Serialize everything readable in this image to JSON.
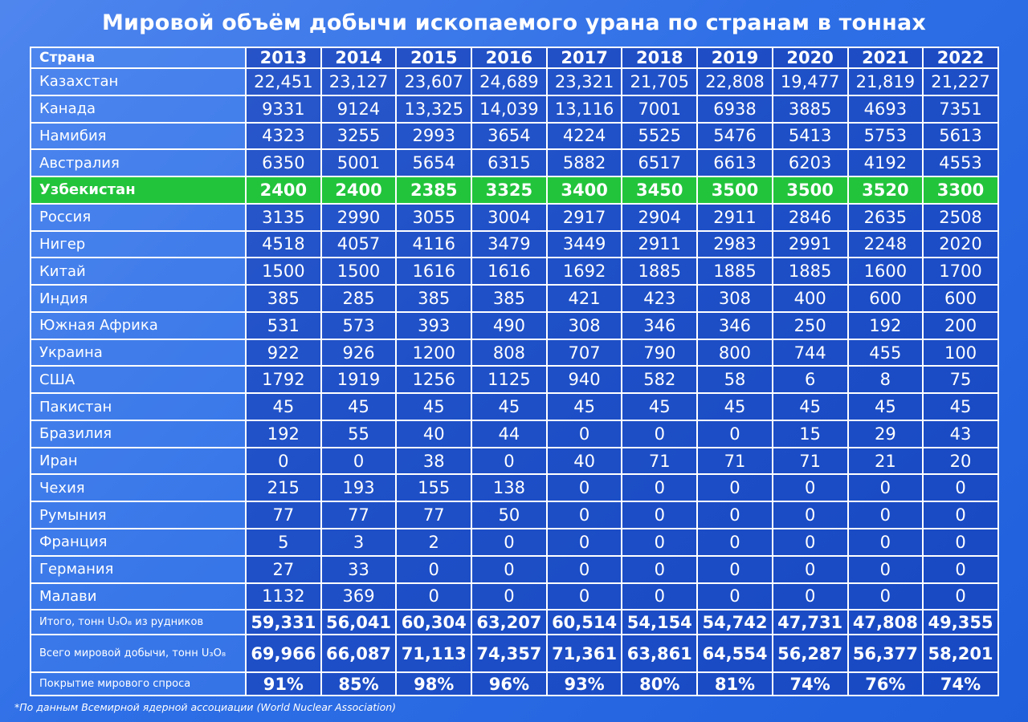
{
  "title": "Мировой объём добычи ископаемого урана по странам в тоннах",
  "footnote": "*По данным Всемирной ядерной ассоциации (World Nuclear Association)",
  "colors": {
    "background": "#2f6fe6",
    "highlight": "#22c43c",
    "grid": "#ffffff"
  },
  "chart_data": {
    "type": "table",
    "column_header": "Страна",
    "years": [
      "2013",
      "2014",
      "2015",
      "2016",
      "2017",
      "2018",
      "2019",
      "2020",
      "2021",
      "2022"
    ],
    "rows": [
      {
        "country": "Казахстан",
        "values": [
          "22,451",
          "23,127",
          "23,607",
          "24,689",
          "23,321",
          "21,705",
          "22,808",
          "19,477",
          "21,819",
          "21,227"
        ]
      },
      {
        "country": "Канада",
        "values": [
          "9331",
          "9124",
          "13,325",
          "14,039",
          "13,116",
          "7001",
          "6938",
          "3885",
          "4693",
          "7351"
        ]
      },
      {
        "country": "Намибия",
        "values": [
          "4323",
          "3255",
          "2993",
          "3654",
          "4224",
          "5525",
          "5476",
          "5413",
          "5753",
          "5613"
        ]
      },
      {
        "country": "Австралия",
        "values": [
          "6350",
          "5001",
          "5654",
          "6315",
          "5882",
          "6517",
          "6613",
          "6203",
          "4192",
          "4553"
        ]
      },
      {
        "country": "Узбекистан",
        "highlight": true,
        "values": [
          "2400",
          "2400",
          "2385",
          "3325",
          "3400",
          "3450",
          "3500",
          "3500",
          "3520",
          "3300"
        ]
      },
      {
        "country": "Россия",
        "values": [
          "3135",
          "2990",
          "3055",
          "3004",
          "2917",
          "2904",
          "2911",
          "2846",
          "2635",
          "2508"
        ]
      },
      {
        "country": "Нигер",
        "values": [
          "4518",
          "4057",
          "4116",
          "3479",
          "3449",
          "2911",
          "2983",
          "2991",
          "2248",
          "2020"
        ]
      },
      {
        "country": "Китай",
        "values": [
          "1500",
          "1500",
          "1616",
          "1616",
          "1692",
          "1885",
          "1885",
          "1885",
          "1600",
          "1700"
        ]
      },
      {
        "country": "Индия",
        "values": [
          "385",
          "285",
          "385",
          "385",
          "421",
          "423",
          "308",
          "400",
          "600",
          "600"
        ]
      },
      {
        "country": "Южная Африка",
        "values": [
          "531",
          "573",
          "393",
          "490",
          "308",
          "346",
          "346",
          "250",
          "192",
          "200"
        ]
      },
      {
        "country": "Украина",
        "values": [
          "922",
          "926",
          "1200",
          "808",
          "707",
          "790",
          "800",
          "744",
          "455",
          "100"
        ]
      },
      {
        "country": "США",
        "values": [
          "1792",
          "1919",
          "1256",
          "1125",
          "940",
          "582",
          "58",
          "6",
          "8",
          "75"
        ]
      },
      {
        "country": "Пакистан",
        "values": [
          "45",
          "45",
          "45",
          "45",
          "45",
          "45",
          "45",
          "45",
          "45",
          "45"
        ]
      },
      {
        "country": "Бразилия",
        "values": [
          "192",
          "55",
          "40",
          "44",
          "0",
          "0",
          "0",
          "15",
          "29",
          "43"
        ]
      },
      {
        "country": "Иран",
        "values": [
          "0",
          "0",
          "38",
          "0",
          "40",
          "71",
          "71",
          "71",
          "21",
          "20"
        ]
      },
      {
        "country": "Чехия",
        "values": [
          "215",
          "193",
          "155",
          "138",
          "0",
          "0",
          "0",
          "0",
          "0",
          "0"
        ]
      },
      {
        "country": "Румыния",
        "values": [
          "77",
          "77",
          "77",
          "50",
          "0",
          "0",
          "0",
          "0",
          "0",
          "0"
        ]
      },
      {
        "country": "Франция",
        "values": [
          "5",
          "3",
          "2",
          "0",
          "0",
          "0",
          "0",
          "0",
          "0",
          "0"
        ]
      },
      {
        "country": "Германия",
        "values": [
          "27",
          "33",
          "0",
          "0",
          "0",
          "0",
          "0",
          "0",
          "0",
          "0"
        ]
      },
      {
        "country": "Малави",
        "values": [
          "1132",
          "369",
          "0",
          "0",
          "0",
          "0",
          "0",
          "0",
          "0",
          "0"
        ]
      }
    ],
    "summary_rows": [
      {
        "label": "Итого, тонн U₃O₈ из рудников",
        "values": [
          "59,331",
          "56,041",
          "60,304",
          "63,207",
          "60,514",
          "54,154",
          "54,742",
          "47,731",
          "47,808",
          "49,355"
        ]
      },
      {
        "label": "Всего мировой добычи, тонн U₃O₈",
        "values": [
          "69,966",
          "66,087",
          "71,113",
          "74,357",
          "71,361",
          "63,861",
          "64,554",
          "56,287",
          "56,377",
          "58,201"
        ]
      },
      {
        "label": "Покрытие мирового спроса",
        "values": [
          "91%",
          "85%",
          "98%",
          "96%",
          "93%",
          "80%",
          "81%",
          "74%",
          "76%",
          "74%"
        ]
      }
    ]
  }
}
